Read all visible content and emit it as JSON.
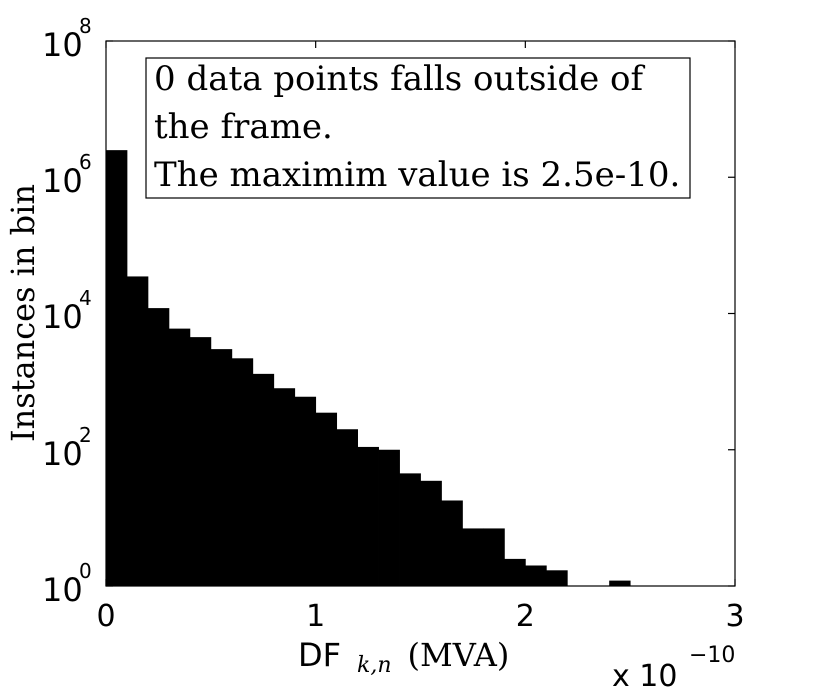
{
  "chart_data": {
    "type": "bar",
    "scale": "log",
    "x_tick_labels": [
      "0",
      "1",
      "2",
      "3"
    ],
    "x_ticks": [
      0,
      1,
      2,
      3
    ],
    "x_multiplier_base": "x 10",
    "x_multiplier_exp": "−10",
    "y_tick_base": "10",
    "y_tick_exponents": [
      "0",
      "2",
      "4",
      "6",
      "8"
    ],
    "xlabel_main": "DF",
    "xlabel_sub": "k,n",
    "xlabel_unit": "(MVA)",
    "ylabel": "Instances in bin",
    "xlim": [
      0,
      3
    ],
    "ylim_log10": [
      0,
      8
    ],
    "annotation": [
      "0 data points falls outside of",
      "the frame.",
      "The maximim value is 2.5e-10."
    ],
    "bin_width": 0.1,
    "bin_starts": [
      0.0,
      0.1,
      0.2,
      0.3,
      0.4,
      0.5,
      0.6,
      0.7,
      0.8,
      0.9,
      1.0,
      1.1,
      1.2,
      1.3,
      1.4,
      1.5,
      1.6,
      1.7,
      1.8,
      1.9,
      2.0,
      2.1,
      2.2,
      2.3,
      2.4,
      2.5
    ],
    "values": [
      2500000,
      35000,
      12000,
      6000,
      4500,
      3000,
      2200,
      1300,
      800,
      600,
      350,
      200,
      110,
      100,
      45,
      35,
      18,
      7,
      7,
      2.5,
      2,
      1.7,
      0.5,
      0,
      1.2,
      0
    ],
    "colors": {
      "bars": "#000000",
      "axes": "#000000",
      "background": "#ffffff"
    }
  }
}
